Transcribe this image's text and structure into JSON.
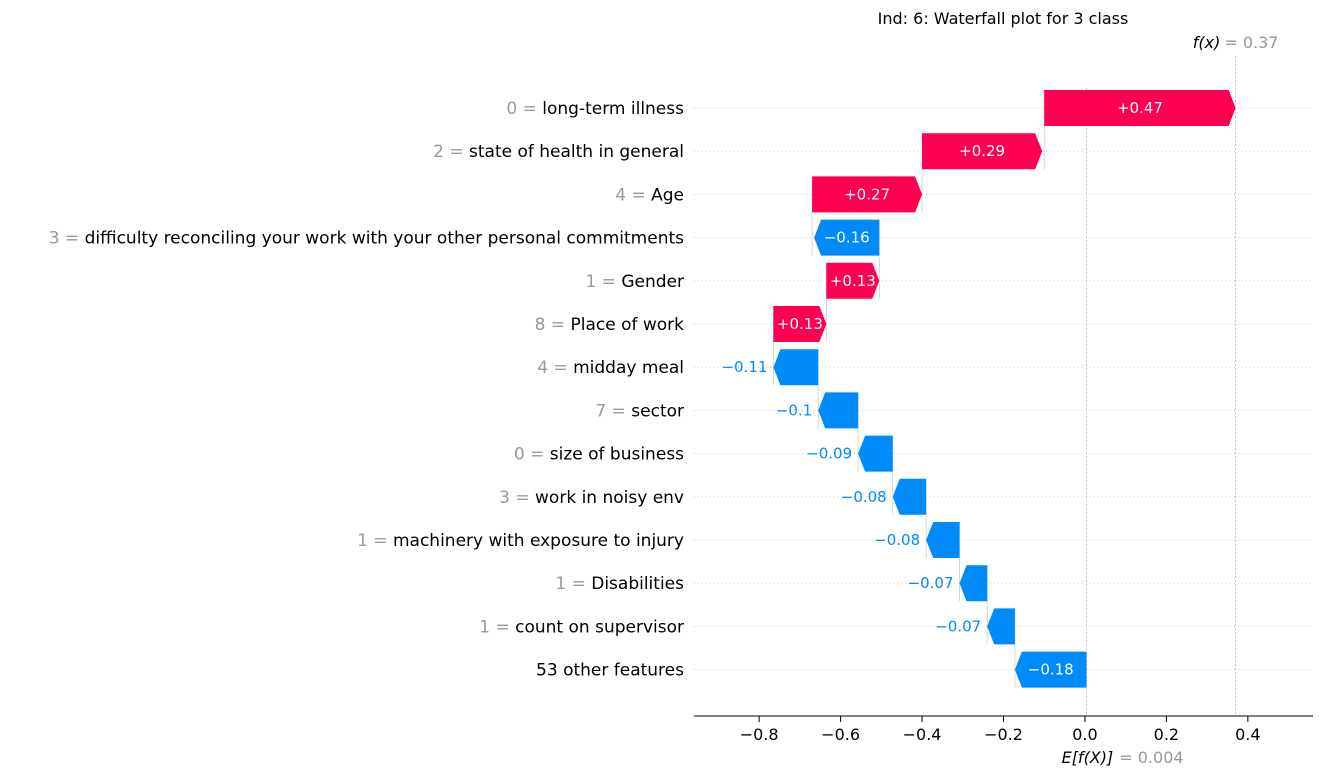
{
  "chart_data": {
    "type": "waterfall",
    "title": "Ind: 6: Waterfall plot for 3 class",
    "base_value": 0.004,
    "base_label": "E[f(X)]",
    "base_value_text": "= 0.004",
    "output_value": 0.37,
    "output_label": "f(x)",
    "output_value_text": "= 0.37",
    "xlim": [
      -0.96,
      0.56
    ],
    "xticks": [
      -0.8,
      -0.6,
      -0.4,
      -0.2,
      0.0,
      0.2,
      0.4
    ],
    "xtick_labels": [
      "−0.8",
      "−0.6",
      "−0.4",
      "−0.2",
      "0.0",
      "0.2",
      "0.4"
    ],
    "colors": {
      "positive": "#ff0051",
      "negative": "#008bfb",
      "value_text": "#999999"
    },
    "features": [
      {
        "value": "0",
        "name": "long-term illness",
        "contribution": 0.47,
        "label": "+0.47",
        "start": -0.1,
        "end": 0.37
      },
      {
        "value": "2",
        "name": "state of health in general",
        "contribution": 0.29,
        "label": "+0.29",
        "start": -0.4,
        "end": -0.105
      },
      {
        "value": "4",
        "name": "Age",
        "contribution": 0.27,
        "label": "+0.27",
        "start": -0.67,
        "end": -0.4
      },
      {
        "value": "3",
        "name": "difficulty reconciling your work with your other personal commitments",
        "contribution": -0.16,
        "label": "−0.16",
        "start": -0.505,
        "end": -0.665
      },
      {
        "value": "1",
        "name": "Gender",
        "contribution": 0.13,
        "label": "+0.13",
        "start": -0.635,
        "end": -0.505
      },
      {
        "value": "8",
        "name": "Place of work",
        "contribution": 0.13,
        "label": "+0.13",
        "start": -0.765,
        "end": -0.635
      },
      {
        "value": "4",
        "name": "midday meal",
        "contribution": -0.11,
        "label": "−0.11",
        "start": -0.655,
        "end": -0.765
      },
      {
        "value": "7",
        "name": "sector",
        "contribution": -0.1,
        "label": "−0.1",
        "start": -0.557,
        "end": -0.655
      },
      {
        "value": "0",
        "name": "size of business",
        "contribution": -0.09,
        "label": "−0.09",
        "start": -0.472,
        "end": -0.557
      },
      {
        "value": "3",
        "name": "work in noisy env",
        "contribution": -0.08,
        "label": "−0.08",
        "start": -0.39,
        "end": -0.472
      },
      {
        "value": "1",
        "name": "machinery with exposure to injury",
        "contribution": -0.08,
        "label": "−0.08",
        "start": -0.308,
        "end": -0.39
      },
      {
        "value": "1",
        "name": "Disabilities",
        "contribution": -0.07,
        "label": "−0.07",
        "start": -0.24,
        "end": -0.308
      },
      {
        "value": "1",
        "name": "count on supervisor",
        "contribution": -0.07,
        "label": "−0.07",
        "start": -0.172,
        "end": -0.24
      },
      {
        "value": "",
        "name": "53 other features",
        "contribution": -0.18,
        "label": "−0.18",
        "start": 0.004,
        "end": -0.172
      }
    ]
  }
}
